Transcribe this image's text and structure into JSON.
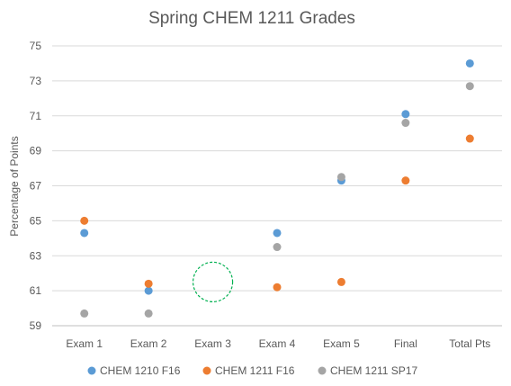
{
  "chart_data": {
    "type": "scatter",
    "title": "Spring CHEM 1211 Grades",
    "xlabel": "",
    "ylabel": "Percentage of Points",
    "categories": [
      "Exam 1",
      "Exam 2",
      "Exam 3",
      "Exam 4",
      "Exam 5",
      "Final",
      "Total Pts"
    ],
    "ylim": [
      59,
      75
    ],
    "yticks": [
      59,
      61,
      63,
      65,
      67,
      69,
      71,
      73,
      75
    ],
    "grid": true,
    "legend_position": "bottom",
    "series": [
      {
        "name": "CHEM 1210 F16",
        "color": "#5B9BD5",
        "values": [
          64.3,
          61.0,
          null,
          64.3,
          67.3,
          71.1,
          74.0
        ]
      },
      {
        "name": "CHEM 1211 F16",
        "color": "#ED7D31",
        "values": [
          65.0,
          61.4,
          null,
          61.2,
          61.5,
          67.3,
          69.7
        ]
      },
      {
        "name": "CHEM 1211 SP17",
        "color": "#A5A5A5",
        "values": [
          59.7,
          59.7,
          null,
          63.5,
          67.5,
          70.6,
          72.7
        ]
      }
    ],
    "annotations": [
      {
        "type": "dashed-circle",
        "category": "Exam 3",
        "y": 61.5,
        "color": "#00B050"
      }
    ]
  }
}
